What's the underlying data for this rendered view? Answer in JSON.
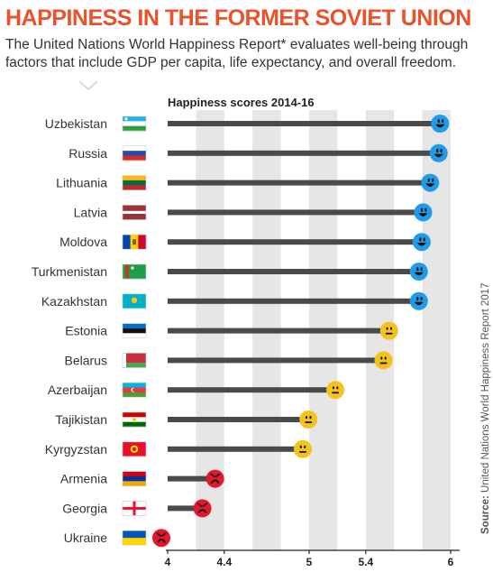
{
  "header": {
    "title": "HAPPINESS IN THE FORMER SOVIET UNION",
    "subtitle": "The United Nations World Happiness Report* evaluates well-being through factors that include GDP per capita, life expectancy, and overall freedom."
  },
  "source": {
    "prefix": "Source:",
    "text": "United Nations World Happiness Report 2017"
  },
  "colors": {
    "title": "#e8532b",
    "bar": "#4a4a4a",
    "happy": "#1e9be9",
    "neutral": "#f5c21b",
    "sad": "#e3172d",
    "grid_band": "#e6e6e6"
  },
  "chart_data": {
    "type": "lollipop",
    "title": "Happiness scores 2014-16",
    "xlim": [
      4,
      6
    ],
    "xticks": [
      "4",
      "4.4",
      "5",
      "5.4",
      "6"
    ],
    "categories": [
      "Uzbekistan",
      "Russia",
      "Lithuania",
      "Latvia",
      "Moldova",
      "Turkmenistan",
      "Kazakhstan",
      "Estonia",
      "Belarus",
      "Azerbaijan",
      "Tajikistan",
      "Kyrgyzstan",
      "Armenia",
      "Georgia",
      "Ukraine"
    ],
    "values": [
      5.97,
      5.96,
      5.9,
      5.85,
      5.84,
      5.82,
      5.82,
      5.61,
      5.57,
      5.23,
      5.04,
      5.0,
      4.38,
      4.29,
      4.0
    ],
    "moods": [
      "happy",
      "happy",
      "happy",
      "happy",
      "happy",
      "happy",
      "happy",
      "neutral",
      "neutral",
      "neutral",
      "neutral",
      "neutral",
      "sad",
      "sad",
      "sad"
    ],
    "flag_icons": [
      "flag-uzbekistan-icon",
      "flag-russia-icon",
      "flag-lithuania-icon",
      "flag-latvia-icon",
      "flag-moldova-icon",
      "flag-turkmenistan-icon",
      "flag-kazakhstan-icon",
      "flag-estonia-icon",
      "flag-belarus-icon",
      "flag-azerbaijan-icon",
      "flag-tajikistan-icon",
      "flag-kyrgyzstan-icon",
      "flag-armenia-icon",
      "flag-georgia-icon",
      "flag-ukraine-icon"
    ]
  }
}
